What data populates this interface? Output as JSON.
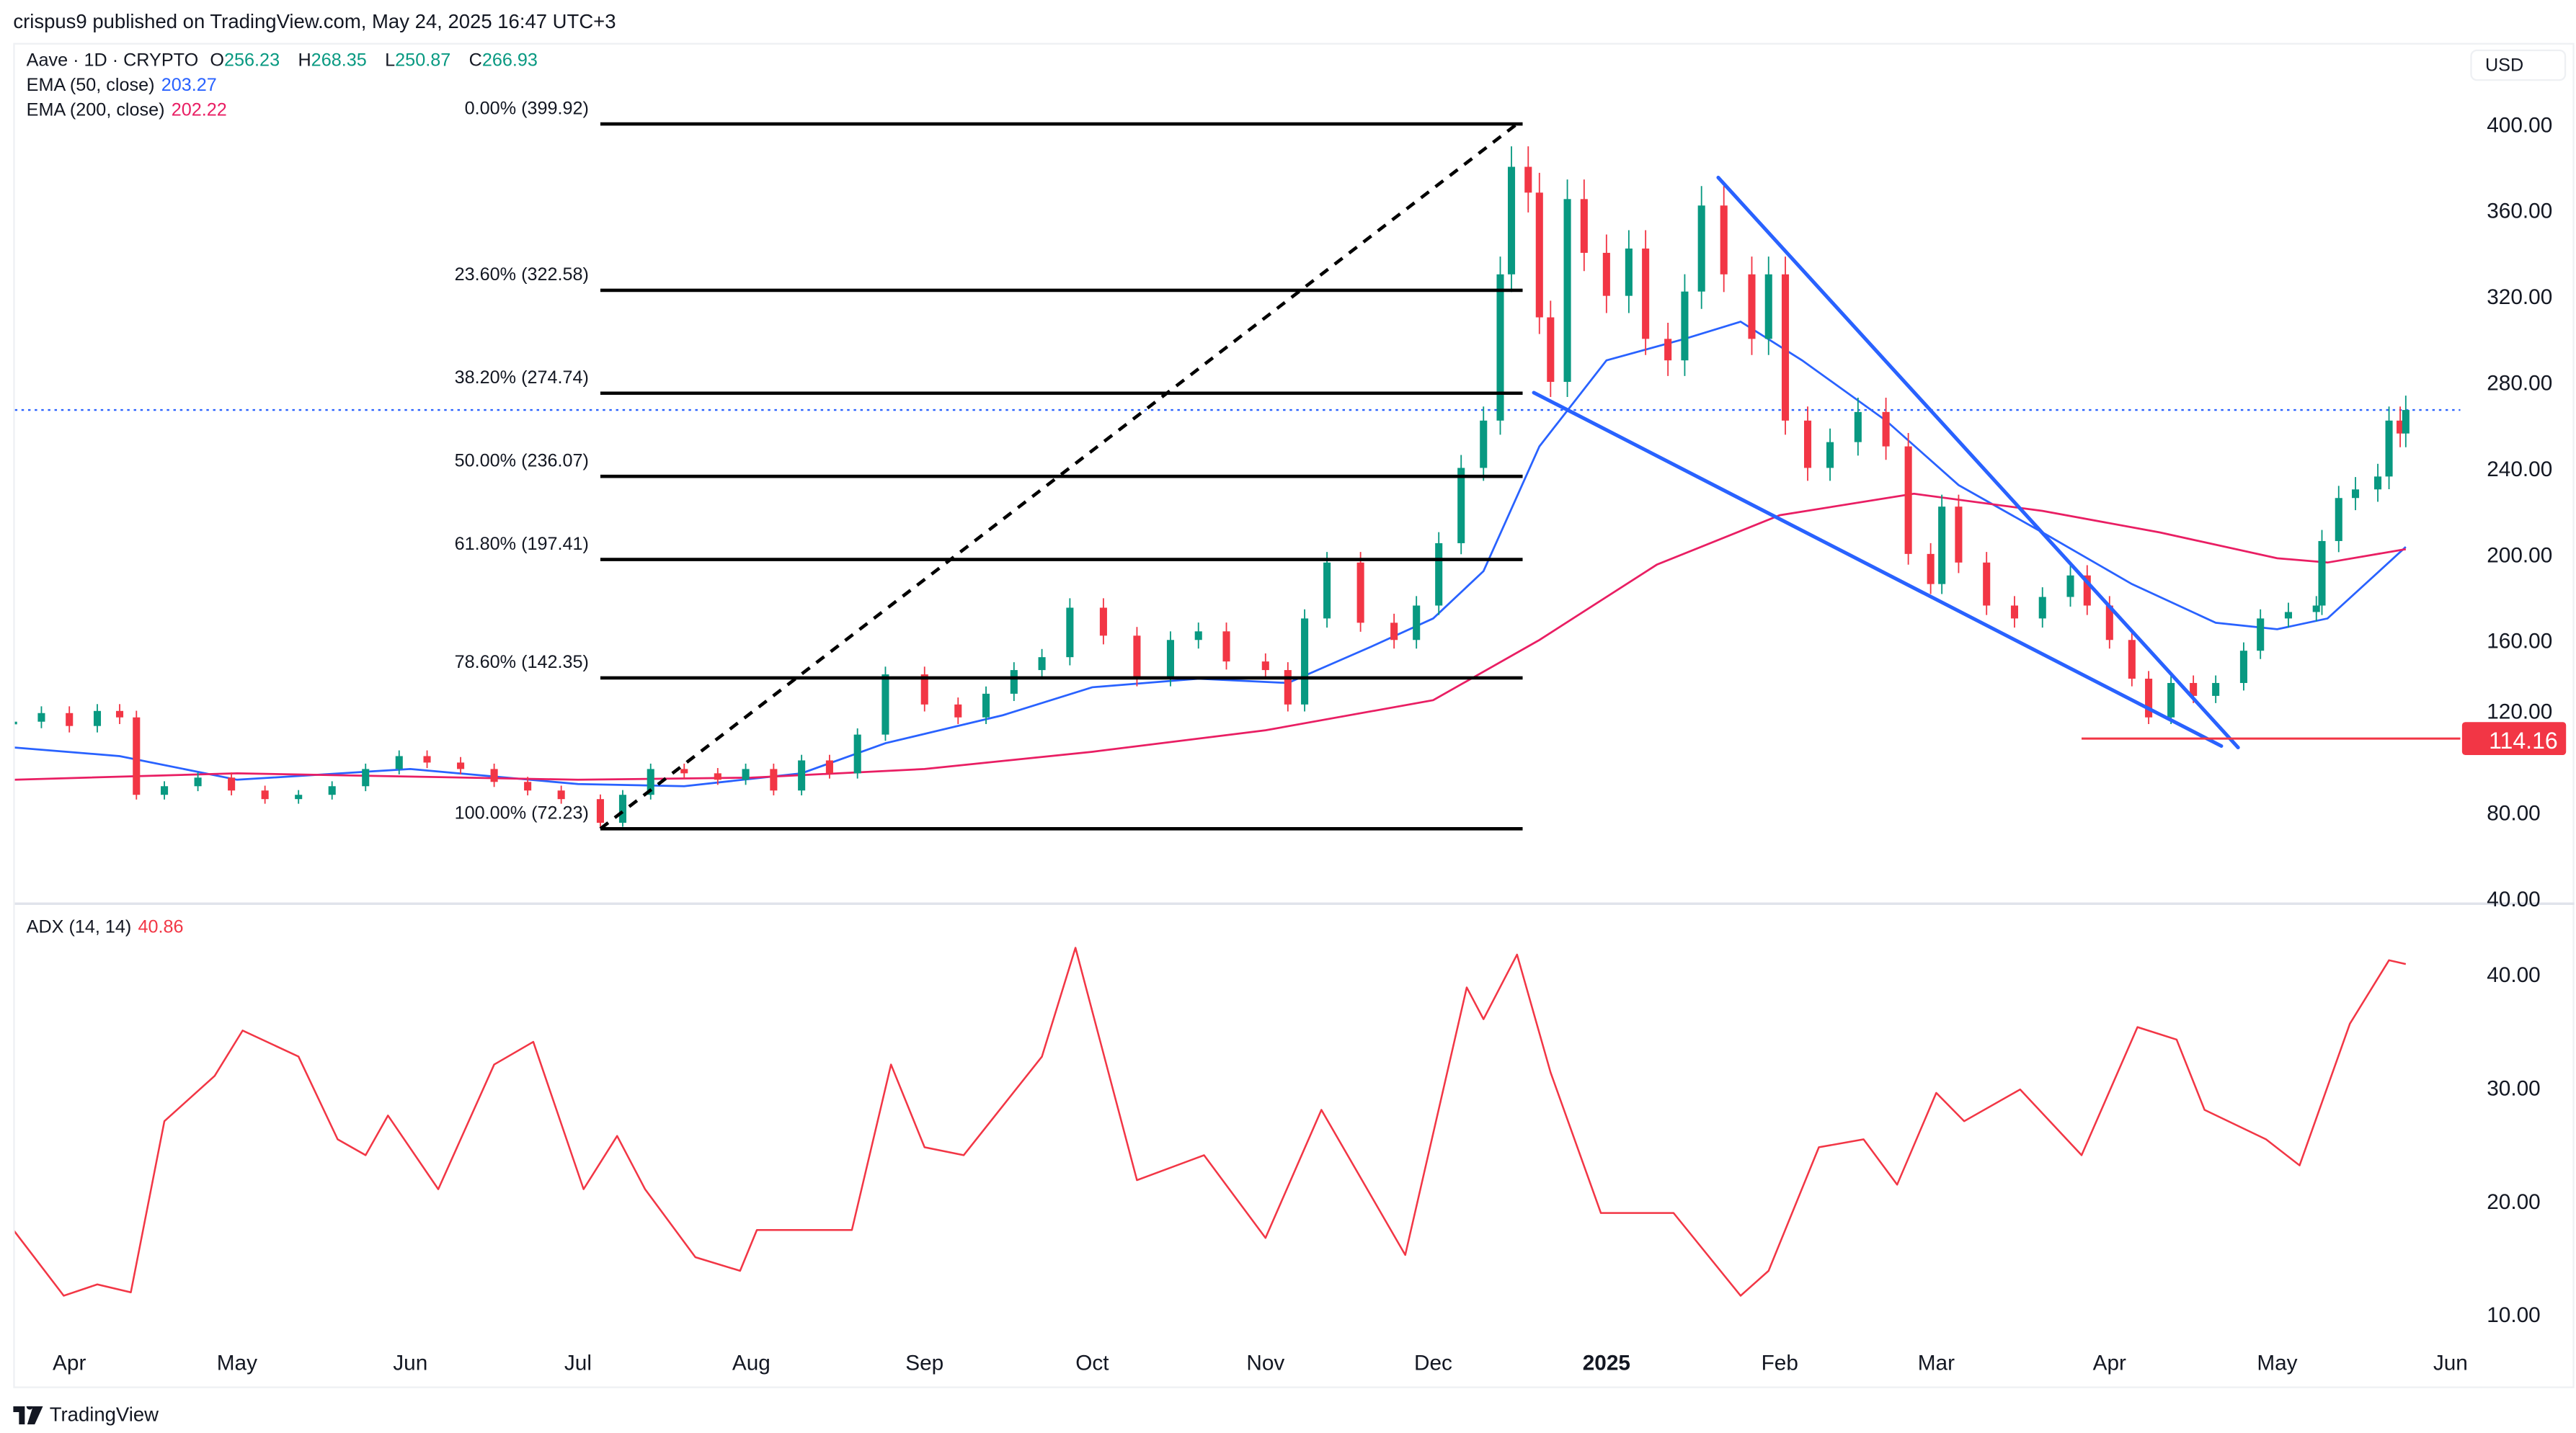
{
  "header": {
    "published": "crispus9 published on TradingView.com, May 24, 2025 16:47 UTC+3",
    "symbol": "Aave · 1D · CRYPTO",
    "ohlc": {
      "o_label": "O",
      "o": "256.23",
      "h_label": "H",
      "h": "268.35",
      "l_label": "L",
      "l": "250.87",
      "c_label": "C",
      "c": "266.93"
    },
    "ema50": {
      "label": "EMA (50, close)",
      "value": "203.27"
    },
    "ema200": {
      "label": "EMA (200, close)",
      "value": "202.22"
    },
    "adx": {
      "label": "ADX (14, 14)",
      "value": "40.86"
    },
    "currency": "USD"
  },
  "footer": {
    "brand": "TradingView",
    "logo_icon": "tradingview-logo-icon"
  },
  "colors": {
    "up": "#089981",
    "down": "#f23645",
    "ema50": "#2962ff",
    "ema200": "#e91e63",
    "adx": "#f23645",
    "trendline": "#2962ff",
    "support": "#f23645",
    "fib": "#000000"
  },
  "chart_data": [
    {
      "type": "candlestick",
      "title": "Aave · 1D · CRYPTO",
      "ylabel": "USD",
      "ylim": [
        38.5,
        437.6
      ],
      "yticks": [
        "400.00",
        "360.00",
        "320.00",
        "280.00",
        "240.00",
        "200.00",
        "160.00",
        "120.00",
        "80.00",
        "40.00"
      ],
      "ytick_values": [
        400,
        360,
        320,
        280,
        240,
        200,
        160,
        120,
        80,
        40
      ],
      "xticks": [
        {
          "label": "Apr",
          "date": "2024-04-01"
        },
        {
          "label": "May",
          "date": "2024-05-01"
        },
        {
          "label": "Jun",
          "date": "2024-06-01"
        },
        {
          "label": "Jul",
          "date": "2024-07-01"
        },
        {
          "label": "Aug",
          "date": "2024-08-01"
        },
        {
          "label": "Sep",
          "date": "2024-09-01"
        },
        {
          "label": "Oct",
          "date": "2024-10-01"
        },
        {
          "label": "Nov",
          "date": "2024-11-01"
        },
        {
          "label": "Dec",
          "date": "2024-12-01"
        },
        {
          "label": "2025",
          "date": "2025-01-01",
          "bold": true
        },
        {
          "label": "Feb",
          "date": "2025-02-01"
        },
        {
          "label": "Mar",
          "date": "2025-03-01"
        },
        {
          "label": "Apr",
          "date": "2025-04-01"
        },
        {
          "label": "May",
          "date": "2025-05-01"
        },
        {
          "label": "Jun",
          "date": "2025-06-01"
        }
      ],
      "grid": false,
      "closes": [
        [
          "2024-03-22",
          122
        ],
        [
          "2024-03-27",
          126
        ],
        [
          "2024-04-01",
          120
        ],
        [
          "2024-04-06",
          127
        ],
        [
          "2024-04-10",
          124
        ],
        [
          "2024-04-13",
          88
        ],
        [
          "2024-04-18",
          92
        ],
        [
          "2024-04-24",
          96
        ],
        [
          "2024-04-30",
          90
        ],
        [
          "2024-05-06",
          86
        ],
        [
          "2024-05-12",
          88
        ],
        [
          "2024-05-18",
          92
        ],
        [
          "2024-05-24",
          100
        ],
        [
          "2024-05-30",
          106
        ],
        [
          "2024-06-04",
          103
        ],
        [
          "2024-06-10",
          100
        ],
        [
          "2024-06-16",
          94
        ],
        [
          "2024-06-22",
          90
        ],
        [
          "2024-06-28",
          86
        ],
        [
          "2024-07-05",
          75
        ],
        [
          "2024-07-09",
          88
        ],
        [
          "2024-07-14",
          100
        ],
        [
          "2024-07-20",
          98
        ],
        [
          "2024-07-26",
          95
        ],
        [
          "2024-07-31",
          100
        ],
        [
          "2024-08-05",
          90
        ],
        [
          "2024-08-10",
          104
        ],
        [
          "2024-08-15",
          98
        ],
        [
          "2024-08-20",
          116
        ],
        [
          "2024-08-25",
          144
        ],
        [
          "2024-09-01",
          130
        ],
        [
          "2024-09-07",
          124
        ],
        [
          "2024-09-12",
          135
        ],
        [
          "2024-09-17",
          146
        ],
        [
          "2024-09-22",
          152
        ],
        [
          "2024-09-27",
          175
        ],
        [
          "2024-10-03",
          162
        ],
        [
          "2024-10-09",
          142
        ],
        [
          "2024-10-15",
          160
        ],
        [
          "2024-10-20",
          164
        ],
        [
          "2024-10-25",
          150
        ],
        [
          "2024-11-01",
          146
        ],
        [
          "2024-11-05",
          130
        ],
        [
          "2024-11-08",
          170
        ],
        [
          "2024-11-12",
          196
        ],
        [
          "2024-11-18",
          168
        ],
        [
          "2024-11-24",
          160
        ],
        [
          "2024-11-28",
          176
        ],
        [
          "2024-12-02",
          205
        ],
        [
          "2024-12-06",
          240
        ],
        [
          "2024-12-10",
          262
        ],
        [
          "2024-12-13",
          330
        ],
        [
          "2024-12-15",
          380
        ],
        [
          "2024-12-18",
          368
        ],
        [
          "2024-12-20",
          310
        ],
        [
          "2024-12-22",
          280
        ],
        [
          "2024-12-25",
          365
        ],
        [
          "2024-12-28",
          340
        ],
        [
          "2025-01-01",
          320
        ],
        [
          "2025-01-05",
          342
        ],
        [
          "2025-01-08",
          300
        ],
        [
          "2025-01-12",
          290
        ],
        [
          "2025-01-15",
          322
        ],
        [
          "2025-01-18",
          362
        ],
        [
          "2025-01-22",
          330
        ],
        [
          "2025-01-27",
          300
        ],
        [
          "2025-01-30",
          330
        ],
        [
          "2025-02-02",
          262
        ],
        [
          "2025-02-06",
          240
        ],
        [
          "2025-02-10",
          252
        ],
        [
          "2025-02-15",
          266
        ],
        [
          "2025-02-20",
          250
        ],
        [
          "2025-02-24",
          200
        ],
        [
          "2025-02-28",
          186
        ],
        [
          "2025-03-02",
          222
        ],
        [
          "2025-03-05",
          196
        ],
        [
          "2025-03-10",
          176
        ],
        [
          "2025-03-15",
          170
        ],
        [
          "2025-03-20",
          180
        ],
        [
          "2025-03-25",
          190
        ],
        [
          "2025-03-28",
          176
        ],
        [
          "2025-04-01",
          160
        ],
        [
          "2025-04-05",
          142
        ],
        [
          "2025-04-08",
          124
        ],
        [
          "2025-04-12",
          140
        ],
        [
          "2025-04-16",
          134
        ],
        [
          "2025-04-20",
          140
        ],
        [
          "2025-04-25",
          155
        ],
        [
          "2025-04-28",
          170
        ],
        [
          "2025-05-03",
          173
        ],
        [
          "2025-05-08",
          176
        ],
        [
          "2025-05-09",
          206
        ],
        [
          "2025-05-12",
          226
        ],
        [
          "2025-05-15",
          230
        ],
        [
          "2025-05-19",
          236
        ],
        [
          "2025-05-21",
          262
        ],
        [
          "2025-05-23",
          256
        ],
        [
          "2025-05-24",
          266.93
        ]
      ],
      "series": [
        {
          "name": "EMA (50, close)",
          "points": [
            [
              "2024-03-22",
              110
            ],
            [
              "2024-04-10",
              106
            ],
            [
              "2024-05-01",
              95
            ],
            [
              "2024-06-01",
              100
            ],
            [
              "2024-07-01",
              93
            ],
            [
              "2024-07-20",
              92
            ],
            [
              "2024-08-10",
              98
            ],
            [
              "2024-08-25",
              112
            ],
            [
              "2024-09-15",
              125
            ],
            [
              "2024-10-01",
              138
            ],
            [
              "2024-10-20",
              142
            ],
            [
              "2024-11-05",
              140
            ],
            [
              "2024-11-20",
              157
            ],
            [
              "2024-12-01",
              170
            ],
            [
              "2024-12-10",
              192
            ],
            [
              "2024-12-20",
              250
            ],
            [
              "2025-01-01",
              290
            ],
            [
              "2025-01-15",
              300
            ],
            [
              "2025-01-25",
              308
            ],
            [
              "2025-02-05",
              290
            ],
            [
              "2025-02-20",
              262
            ],
            [
              "2025-03-05",
              232
            ],
            [
              "2025-03-20",
              210
            ],
            [
              "2025-04-05",
              186
            ],
            [
              "2025-04-20",
              168
            ],
            [
              "2025-05-01",
              165
            ],
            [
              "2025-05-10",
              170
            ],
            [
              "2025-05-24",
              203.27
            ]
          ]
        },
        {
          "name": "EMA (200, close)",
          "points": [
            [
              "2024-03-22",
              95
            ],
            [
              "2024-05-01",
              98
            ],
            [
              "2024-07-01",
              95
            ],
            [
              "2024-08-01",
              96
            ],
            [
              "2024-09-01",
              100
            ],
            [
              "2024-10-01",
              108
            ],
            [
              "2024-11-01",
              118
            ],
            [
              "2024-12-01",
              132
            ],
            [
              "2024-12-20",
              160
            ],
            [
              "2025-01-10",
              195
            ],
            [
              "2025-02-01",
              218
            ],
            [
              "2025-02-25",
              228
            ],
            [
              "2025-03-20",
              220
            ],
            [
              "2025-04-10",
              210
            ],
            [
              "2025-05-01",
              198
            ],
            [
              "2025-05-10",
              196
            ],
            [
              "2025-05-24",
              202.22
            ]
          ]
        }
      ],
      "fibonacci": {
        "start_date": "2024-07-05",
        "end_date": "2024-12-17",
        "levels": [
          {
            "label": "0.00% (399.92)",
            "price": 399.92
          },
          {
            "label": "23.60% (322.58)",
            "price": 322.58
          },
          {
            "label": "38.20% (274.74)",
            "price": 274.74
          },
          {
            "label": "50.00% (236.07)",
            "price": 236.07
          },
          {
            "label": "61.80% (197.41)",
            "price": 197.41
          },
          {
            "label": "78.60% (142.35)",
            "price": 142.35
          },
          {
            "label": "100.00% (72.23)",
            "price": 72.23
          }
        ],
        "trend": [
          [
            "2024-07-05",
            72.23
          ],
          [
            "2024-12-16",
            399.92
          ]
        ]
      },
      "trendlines": [
        [
          [
            "2025-01-21",
            375
          ],
          [
            "2025-04-24",
            110
          ]
        ],
        [
          [
            "2024-12-19",
            275
          ],
          [
            "2025-04-21",
            110.7
          ]
        ]
      ],
      "support": {
        "price": 114.16,
        "label": "114.16",
        "start_date": "2025-03-27"
      },
      "last_price": 266.93
    },
    {
      "type": "line",
      "title": "ADX (14, 14)",
      "ylim": [
        4.5,
        47
      ],
      "yticks": [
        "40.00",
        "30.00",
        "20.00",
        "10.00"
      ],
      "ytick_values": [
        40,
        30,
        20,
        10
      ],
      "series": [
        {
          "name": "ADX (14, 14)",
          "points": [
            [
              "2024-03-22",
              17.4
            ],
            [
              "2024-03-31",
              11.6
            ],
            [
              "2024-04-06",
              12.6
            ],
            [
              "2024-04-12",
              11.9
            ],
            [
              "2024-04-18",
              27
            ],
            [
              "2024-04-27",
              31
            ],
            [
              "2024-05-02",
              35
            ],
            [
              "2024-05-12",
              32.7
            ],
            [
              "2024-05-19",
              25.4
            ],
            [
              "2024-05-24",
              24
            ],
            [
              "2024-05-28",
              27.5
            ],
            [
              "2024-06-06",
              21
            ],
            [
              "2024-06-16",
              32
            ],
            [
              "2024-06-23",
              34
            ],
            [
              "2024-07-02",
              21
            ],
            [
              "2024-07-08",
              25.7
            ],
            [
              "2024-07-13",
              21
            ],
            [
              "2024-07-22",
              15
            ],
            [
              "2024-07-30",
              13.8
            ],
            [
              "2024-08-02",
              17.4
            ],
            [
              "2024-08-19",
              17.4
            ],
            [
              "2024-08-26",
              32
            ],
            [
              "2024-09-01",
              24.7
            ],
            [
              "2024-09-08",
              24
            ],
            [
              "2024-09-22",
              32.7
            ],
            [
              "2024-09-28",
              42.3
            ],
            [
              "2024-10-09",
              21.8
            ],
            [
              "2024-10-21",
              24
            ],
            [
              "2024-11-01",
              16.7
            ],
            [
              "2024-11-11",
              28
            ],
            [
              "2024-11-26",
              15.2
            ],
            [
              "2024-12-07",
              38.8
            ],
            [
              "2024-12-10",
              36
            ],
            [
              "2024-12-16",
              41.7
            ],
            [
              "2024-12-22",
              31.3
            ],
            [
              "2024-12-31",
              18.9
            ],
            [
              "2025-01-13",
              18.9
            ],
            [
              "2025-01-25",
              11.6
            ],
            [
              "2025-01-30",
              13.8
            ],
            [
              "2025-02-08",
              24.7
            ],
            [
              "2025-02-16",
              25.4
            ],
            [
              "2025-02-22",
              21.4
            ],
            [
              "2025-03-01",
              29.5
            ],
            [
              "2025-03-06",
              27
            ],
            [
              "2025-03-16",
              29.8
            ],
            [
              "2025-03-27",
              24
            ],
            [
              "2025-04-06",
              35.3
            ],
            [
              "2025-04-13",
              34.2
            ],
            [
              "2025-04-18",
              28
            ],
            [
              "2025-04-29",
              25.4
            ],
            [
              "2025-05-05",
              23.1
            ],
            [
              "2025-05-14",
              35.6
            ],
            [
              "2025-05-21",
              41.2
            ],
            [
              "2025-05-24",
              40.86
            ]
          ]
        }
      ]
    }
  ]
}
